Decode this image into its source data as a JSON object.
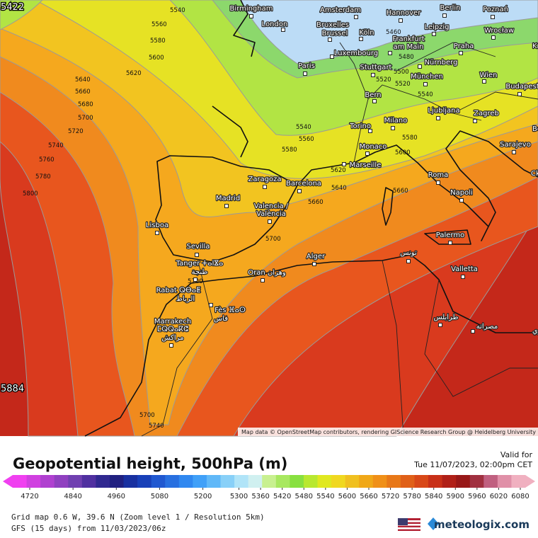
{
  "map": {
    "extremes": [
      "5422",
      "5884"
    ],
    "cities": [
      "Birmingham",
      "London",
      "Amsterdam",
      "Hannover",
      "Berlin",
      "Poznań",
      "Bruxelles",
      "Brussel",
      "Köln",
      "Leipzig",
      "Wrocław",
      "Frankfurt",
      "am Main",
      "Praha",
      "Luxembourg",
      "Nürnberg",
      "Paris",
      "Stuttgart",
      "München",
      "Wien",
      "Budapest",
      "Bern",
      "Ljubljana",
      "Zagreb",
      "Torino",
      "Milano",
      "Monaco",
      "Sarajevo",
      "Marseille",
      "Roma",
      "Zaragoza",
      "Barcelona",
      "Napoli",
      "Madrid",
      "Valencia /",
      "València",
      "Lisboa",
      "Palermo",
      "Sevilla",
      "تونس",
      "Alger",
      "Tanger ⵜⴰⵏⴵⴰ",
      "طنجة",
      "Oran وهران",
      "Valletta",
      "Rabat ⵕⴱⴰⵟ",
      "الرباط",
      "Fès ⴼⴰⵙ",
      "فاس",
      "طرابلس",
      "مصراته",
      "Marrakech",
      "ⵎⵕⵕⴰⴽⵛ",
      "مراكش",
      "Kra",
      "Be",
      "Ck",
      "زي"
    ],
    "contour_labels": [
      5540,
      5560,
      5580,
      5600,
      5620,
      5640,
      5660,
      5680,
      5700,
      5720,
      5740,
      5760,
      5780,
      5800,
      5540,
      5560,
      5580,
      5620,
      5640,
      5660,
      5700,
      5700,
      5700,
      5740,
      5460,
      5480,
      5500,
      5520,
      5520,
      5540,
      5580,
      5600,
      5660
    ],
    "attribution": "Map data © OpenStreetMap contributors, rendering GIScience Research Group @ Heidelberg University"
  },
  "legend": {
    "title": "Geopotential height, 500hPa (m)",
    "valid_label": "Valid for",
    "valid_time": "Tue 11/07/2023, 02:00pm CET",
    "colorbar": {
      "ticks": [
        4720,
        4840,
        4960,
        5080,
        5200,
        5300,
        5360,
        5420,
        5480,
        5540,
        5600,
        5660,
        5720,
        5780,
        5840,
        5900,
        5960,
        6020,
        6080
      ],
      "colors": [
        "#f040f0",
        "#d040e0",
        "#b040d0",
        "#9040c0",
        "#7040b0",
        "#5030a0",
        "#302890",
        "#202080",
        "#1830a0",
        "#1840b8",
        "#2058d0",
        "#2870e0",
        "#3088f0",
        "#40a0f8",
        "#60b8f8",
        "#88d0f8",
        "#b0e4f8",
        "#d0f0f0",
        "#c8f090",
        "#a8e860",
        "#88e040",
        "#b8e830",
        "#e0e820",
        "#f0d820",
        "#f0c020",
        "#f0a818",
        "#f09018",
        "#e87818",
        "#e06018",
        "#d84818",
        "#c83018",
        "#b02018",
        "#981818",
        "#a03040",
        "#c06080",
        "#e090a8",
        "#f0b0c0"
      ]
    }
  },
  "footer": {
    "grid_info": "Grid map 0.6 W, 39.6 N (Zoom level 1 / Resolution 5km)",
    "model_run": "GFS (15 days) from 11/03/2023/06z",
    "logo": "meteologix.com"
  }
}
